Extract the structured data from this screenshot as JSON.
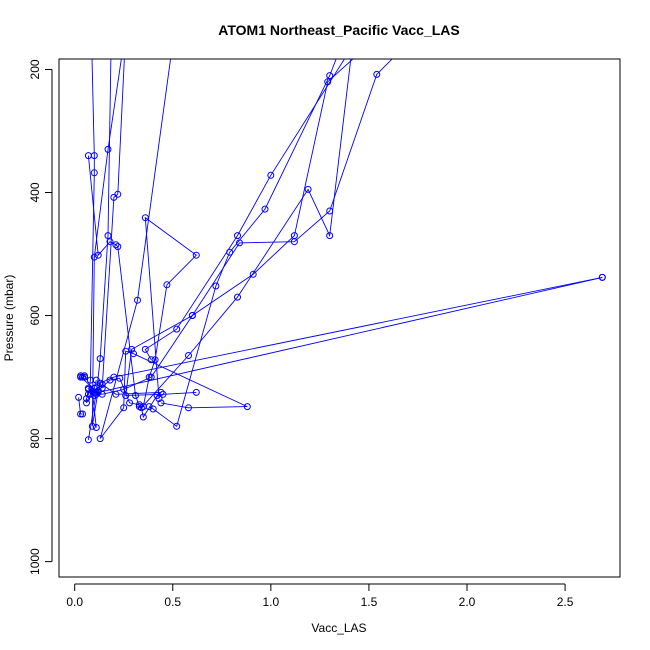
{
  "chart_data": {
    "type": "line",
    "title": "ATOM1 Northeast_Pacific Vacc_LAS",
    "xlabel": "Vacc_LAS",
    "ylabel": "Pressure (mbar)",
    "xlim": [
      -0.08,
      2.78
    ],
    "ylim": [
      1025,
      183
    ],
    "y_reversed": true,
    "x_ticks": [
      "0.0",
      "0.5",
      "1.0",
      "1.5",
      "2.0",
      "2.5"
    ],
    "x_tick_values": [
      0,
      0.5,
      1.0,
      1.5,
      2.0,
      2.5
    ],
    "y_ticks": [
      "200",
      "400",
      "600",
      "800",
      "1000"
    ],
    "y_tick_values": [
      200,
      400,
      600,
      800,
      1000
    ],
    "series_color": "#0000ff",
    "grid": false,
    "series": [
      {
        "x": [
          0.08,
          0.1,
          0.1,
          0.08,
          0.07,
          0.06,
          0.06,
          0.08,
          0.1,
          0.11
        ],
        "y": [
          70,
          340,
          368,
          705,
          728,
          735,
          742,
          728,
          718,
          705
        ]
      },
      {
        "x": [
          0.19,
          0.17,
          0.13,
          0.11,
          0.1,
          0.09
        ],
        "y": [
          70,
          470,
          670,
          728,
          730,
          723
        ]
      },
      {
        "x": [
          0.07,
          0.12,
          0.18,
          0.21,
          0.22,
          0.31,
          0.33,
          0.35,
          0.38,
          0.41,
          0.47,
          0.62,
          0.36,
          0.43
        ],
        "y": [
          340,
          502,
          480,
          485,
          488,
          730,
          748,
          748,
          700,
          672,
          550,
          502,
          441,
          735
        ]
      },
      {
        "x": [
          0.27,
          0.22,
          0.2,
          0.14,
          0.13,
          0.11,
          0.07
        ],
        "y": [
          70,
          403,
          408,
          718,
          710,
          725,
          802
        ]
      },
      {
        "x": [
          0.6,
          0.49,
          0.32,
          0.13,
          0.25,
          0.26,
          0.3,
          0.88,
          0.58,
          0.44
        ],
        "y": [
          70,
          180,
          575,
          800,
          750,
          658,
          662,
          748,
          750,
          742
        ]
      },
      {
        "x": [
          0.29,
          0.17,
          0.1,
          0.09,
          0.12,
          0.18,
          0.23,
          0.28,
          0.33
        ],
        "y": [
          70,
          330,
          505,
          780,
          722,
          705,
          702,
          742,
          745
        ]
      },
      {
        "x": [
          1.45,
          1.3,
          1.19,
          0.83,
          0.58,
          0.34,
          0.35,
          0.42,
          0.44,
          0.21,
          0.14
        ],
        "y": [
          70,
          470,
          395,
          570,
          665,
          750,
          765,
          730,
          725,
          728,
          712
        ]
      },
      {
        "x": [
          1.47,
          1.3,
          0.97,
          0.79,
          0.72,
          0.52,
          0.4,
          0.38
        ],
        "y": [
          70,
          210,
          427,
          497,
          552,
          780,
          752,
          748
        ]
      },
      {
        "x": [
          1.97,
          1.54,
          1.3,
          1.12,
          0.84,
          0.6,
          0.29,
          0.26,
          0.45,
          0.62
        ],
        "y": [
          70,
          208,
          430,
          480,
          482,
          600,
          655,
          730,
          728,
          725
        ]
      },
      {
        "x": [
          1.81,
          1.29,
          1.12,
          0.91,
          0.6,
          0.39,
          0.25,
          0.14,
          0.1,
          0.07
        ],
        "y": [
          70,
          220,
          470,
          533,
          600,
          700,
          720,
          728,
          725,
          720
        ]
      },
      {
        "x": [
          1.6,
          1.0,
          0.83,
          0.52,
          0.36,
          0.39
        ],
        "y": [
          70,
          372,
          470,
          622,
          655,
          672
        ]
      },
      {
        "x": [
          2.69,
          0.12,
          0.03,
          0.04
        ],
        "y": [
          538,
          725,
          700,
          700
        ]
      },
      {
        "x": [
          2.69,
          0.2,
          0.07,
          0.09,
          0.11
        ],
        "y": [
          538,
          700,
          718,
          723,
          782
        ]
      },
      {
        "x": [
          0.02,
          0.03,
          0.04
        ],
        "y": [
          733,
          760,
          760
        ]
      },
      {
        "x": [
          0.03,
          0.05,
          0.05
        ],
        "y": [
          698,
          698,
          700
        ]
      }
    ]
  }
}
